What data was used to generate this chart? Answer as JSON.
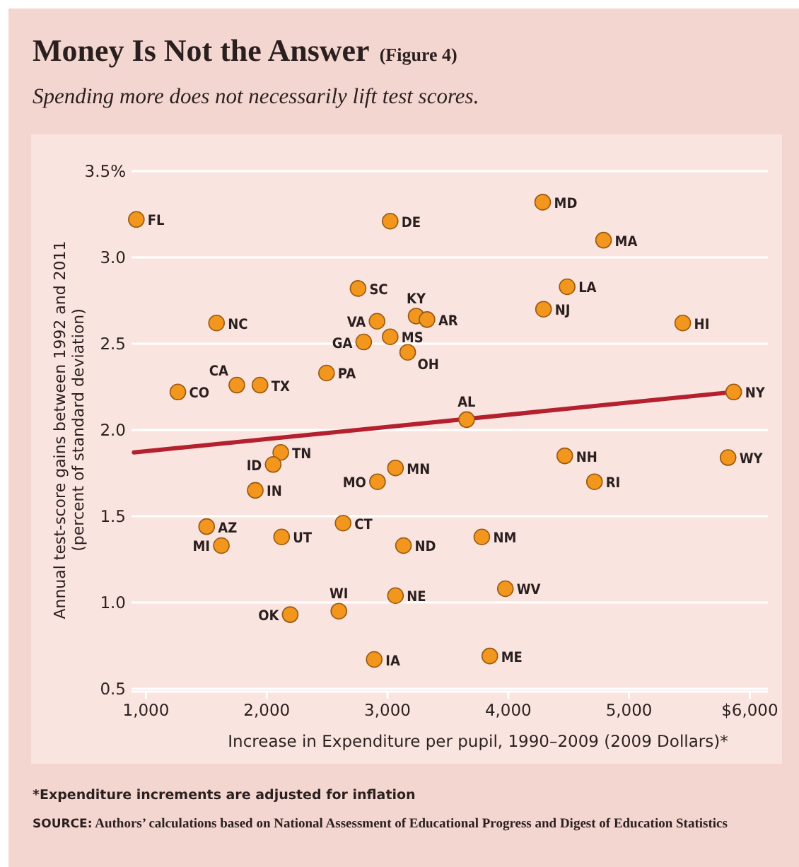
{
  "chart_data": {
    "type": "scatter",
    "title": "Money Is Not the Answer (Figure 4)",
    "subtitle": "Spending more does not necessarily lift test scores.",
    "xlabel": "Increase in Expenditure per pupil, 1990–2009 (2009 Dollars)*",
    "ylabel": "Annual test-score gains between 1992 and 2011\n(percent of standard deviation)",
    "xlim": [
      880,
      6150
    ],
    "ylim": [
      0.5,
      3.5
    ],
    "xticks": [
      {
        "value": 1000,
        "label": "1,000"
      },
      {
        "value": 2000,
        "label": "2,000"
      },
      {
        "value": 3000,
        "label": "3,000"
      },
      {
        "value": 4000,
        "label": "4,000"
      },
      {
        "value": 5000,
        "label": "5,000"
      },
      {
        "value": 6000,
        "label": "$6,000"
      }
    ],
    "yticks": [
      0.5,
      {
        "value": 1,
        "label": "1.0"
      },
      1.5,
      {
        "value": 2,
        "label": "2.0"
      },
      2.5,
      {
        "value": 3,
        "label": "3.0"
      },
      {
        "value": 3.5,
        "label": "3.5%"
      }
    ],
    "grid": "y",
    "marker": "circle",
    "series": [
      {
        "type": "scatter",
        "color": "#f2961e",
        "x": [
          920,
          3022,
          2756,
          1584,
          2913,
          3237,
          3327,
          2803,
          3022,
          3167,
          2495,
          1752,
          1944,
          1264,
          4285,
          4789,
          4488,
          4292,
          5445,
          3655,
          5867,
          2116,
          2053,
          1905,
          2917,
          3066,
          1502,
          1624,
          2123,
          2632,
          3132,
          3066,
          2597,
          2194,
          2890,
          4468,
          5820,
          4714,
          3781,
          3976,
          3847
        ],
        "values": [
          3.22,
          3.21,
          2.82,
          2.62,
          2.63,
          2.66,
          2.64,
          2.51,
          2.54,
          2.45,
          2.33,
          2.26,
          2.26,
          2.22,
          3.32,
          3.1,
          2.83,
          2.7,
          2.62,
          2.06,
          2.22,
          1.87,
          1.8,
          1.65,
          1.7,
          1.78,
          1.44,
          1.33,
          1.38,
          1.46,
          1.33,
          1.04,
          0.95,
          0.93,
          0.67,
          1.85,
          1.84,
          1.7,
          1.38,
          1.08,
          0.69
        ]
      },
      {
        "type": "line",
        "color": "#b5202e",
        "line_style": "solid",
        "marker": "none",
        "x": [
          900,
          5867
        ],
        "values": [
          1.87,
          2.22
        ]
      }
    ],
    "annotations": [
      "*Expenditure increments are adjusted for inflation",
      "SOURCE: Authors’ calculations based on National Assessment of Educational Progress and Digest of Education Statistics",
      {
        "text": "FL",
        "x": 920,
        "y": 3.22
      },
      {
        "text": "DE",
        "x": 3022,
        "y": 3.21
      },
      {
        "text": "SC",
        "x": 2756,
        "y": 2.82
      },
      {
        "text": "NC",
        "x": 1584,
        "y": 2.62
      },
      {
        "text": "VA",
        "x": 2913,
        "y": 2.63
      },
      {
        "text": "KY",
        "x": 3237,
        "y": 2.66
      },
      {
        "text": "AR",
        "x": 3327,
        "y": 2.64
      },
      {
        "text": "GA",
        "x": 2803,
        "y": 2.51
      },
      {
        "text": "MS",
        "x": 3022,
        "y": 2.54
      },
      {
        "text": "OH",
        "x": 3167,
        "y": 2.45
      },
      {
        "text": "PA",
        "x": 2495,
        "y": 2.33
      },
      {
        "text": "CA",
        "x": 1752,
        "y": 2.26
      },
      {
        "text": "TX",
        "x": 1944,
        "y": 2.26
      },
      {
        "text": "CO",
        "x": 1264,
        "y": 2.22
      },
      {
        "text": "MD",
        "x": 4285,
        "y": 3.32
      },
      {
        "text": "MA",
        "x": 4789,
        "y": 3.1
      },
      {
        "text": "LA",
        "x": 4488,
        "y": 2.83
      },
      {
        "text": "NJ",
        "x": 4292,
        "y": 2.7
      },
      {
        "text": "HI",
        "x": 5445,
        "y": 2.62
      },
      {
        "text": "AL",
        "x": 3655,
        "y": 2.06
      },
      {
        "text": "NY",
        "x": 5867,
        "y": 2.22
      },
      {
        "text": "TN",
        "x": 2116,
        "y": 1.87
      },
      {
        "text": "ID",
        "x": 2053,
        "y": 1.8
      },
      {
        "text": "IN",
        "x": 1905,
        "y": 1.65
      },
      {
        "text": "MO",
        "x": 2917,
        "y": 1.7
      },
      {
        "text": "MN",
        "x": 3066,
        "y": 1.78
      },
      {
        "text": "AZ",
        "x": 1502,
        "y": 1.44
      },
      {
        "text": "MI",
        "x": 1624,
        "y": 1.33
      },
      {
        "text": "UT",
        "x": 2123,
        "y": 1.38
      },
      {
        "text": "CT",
        "x": 2632,
        "y": 1.46
      },
      {
        "text": "ND",
        "x": 3132,
        "y": 1.33
      },
      {
        "text": "NE",
        "x": 3066,
        "y": 1.04
      },
      {
        "text": "WI",
        "x": 2597,
        "y": 0.95
      },
      {
        "text": "OK",
        "x": 2194,
        "y": 0.93
      },
      {
        "text": "IA",
        "x": 2890,
        "y": 0.67
      },
      {
        "text": "NH",
        "x": 4468,
        "y": 1.85
      },
      {
        "text": "WY",
        "x": 5820,
        "y": 1.84
      },
      {
        "text": "RI",
        "x": 4714,
        "y": 1.7
      },
      {
        "text": "NM",
        "x": 3781,
        "y": 1.38
      },
      {
        "text": "WV",
        "x": 3976,
        "y": 1.08
      },
      {
        "text": "ME",
        "x": 3847,
        "y": 0.69
      }
    ]
  }
}
